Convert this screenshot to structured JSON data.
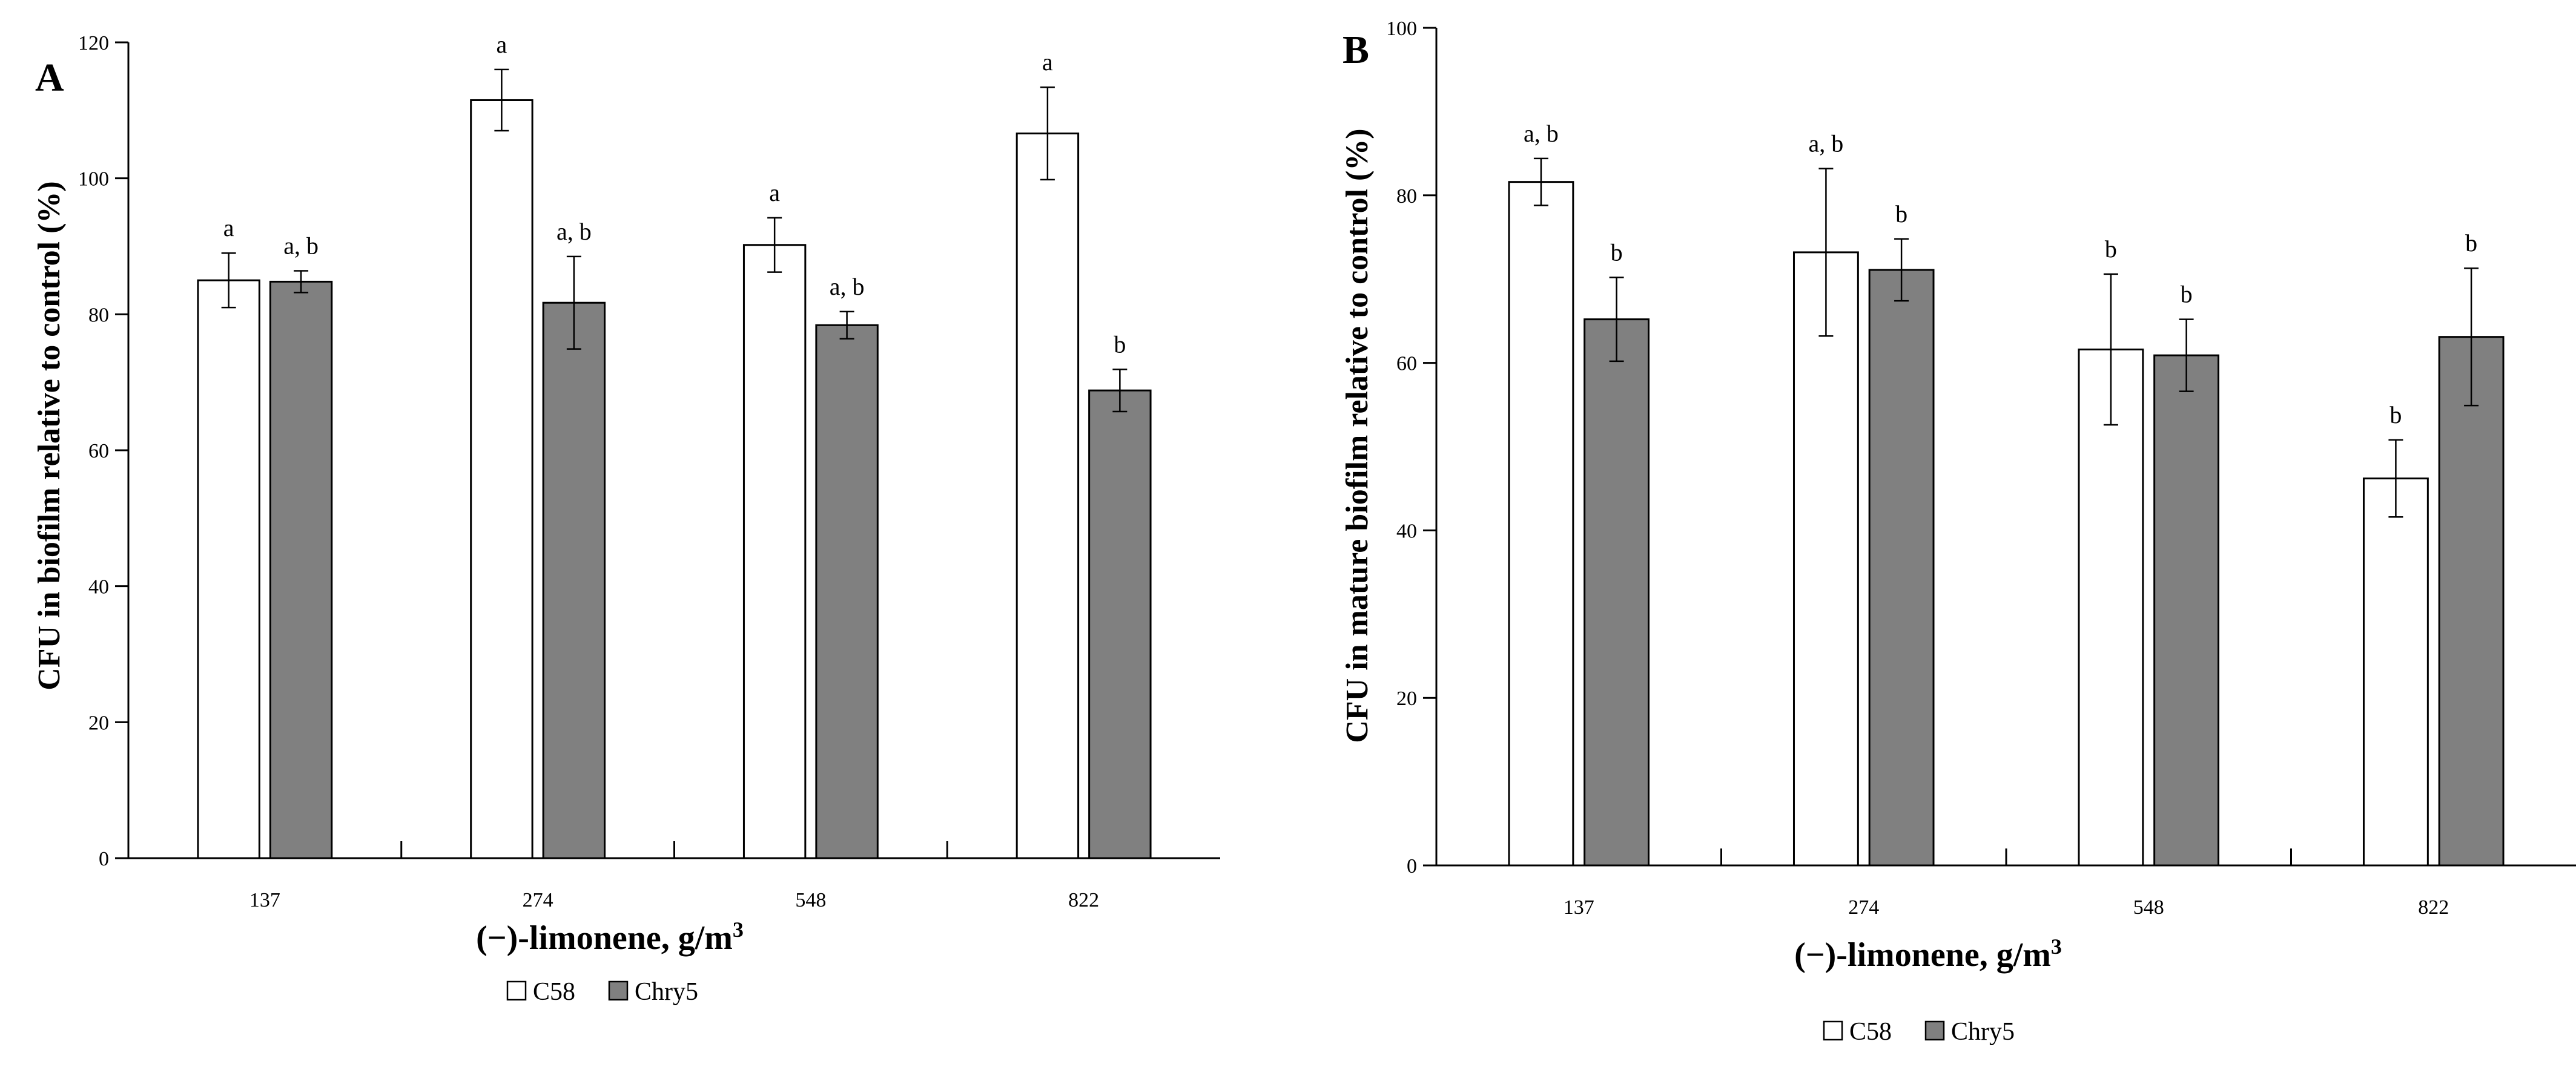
{
  "chart_data": [
    {
      "type": "bar",
      "panel_label": "A",
      "title": "",
      "ylabel": "CFU in biofilm relative to control (%)",
      "xlabel": "(−)-limonene, g/m",
      "xlabel_sup": "3",
      "ylim": [
        0,
        120
      ],
      "yticks": [
        "0",
        "20",
        "40",
        "60",
        "80",
        "100",
        "120"
      ],
      "categories": [
        "137",
        "274",
        "548",
        "822"
      ],
      "series": [
        {
          "name": "C58",
          "color": "#ffffff",
          "values": [
            85,
            111.5,
            90.2,
            106.6
          ],
          "errors": [
            4.0,
            4.5,
            4.0,
            6.8
          ],
          "labels": [
            "a",
            "a",
            "a",
            "a"
          ]
        },
        {
          "name": "Chry5",
          "color": "#808080",
          "values": [
            84.8,
            81.7,
            78.4,
            68.8
          ],
          "errors": [
            1.6,
            6.8,
            2.0,
            3.1
          ],
          "labels": [
            "a, b",
            "a, b",
            "a, b",
            "b"
          ]
        }
      ],
      "legend": [
        "C58",
        "Chry5"
      ],
      "legend_position": "bottom-center"
    },
    {
      "type": "bar",
      "panel_label": "B",
      "title": "",
      "ylabel": "CFU in mature biofilm relative to control (%)",
      "xlabel": "(−)-limonene, g/m",
      "xlabel_sup": "3",
      "ylim": [
        0,
        100
      ],
      "yticks": [
        "0",
        "20",
        "40",
        "60",
        "80",
        "100"
      ],
      "categories": [
        "137",
        "274",
        "548",
        "822"
      ],
      "series": [
        {
          "name": "C58",
          "color": "#ffffff",
          "values": [
            81.6,
            73.2,
            61.6,
            46.2
          ],
          "errors": [
            2.8,
            10.0,
            9.0,
            4.6
          ],
          "labels": [
            "a, b",
            "a, b",
            "b",
            "b"
          ]
        },
        {
          "name": "Chry5",
          "color": "#808080",
          "values": [
            65.2,
            71.1,
            60.9,
            63.1
          ],
          "errors": [
            5.0,
            3.7,
            4.3,
            8.2
          ],
          "labels": [
            "b",
            "b",
            "b",
            "b"
          ]
        }
      ],
      "legend": [
        "C58",
        "Chry5"
      ],
      "legend_position": "bottom-center"
    }
  ]
}
